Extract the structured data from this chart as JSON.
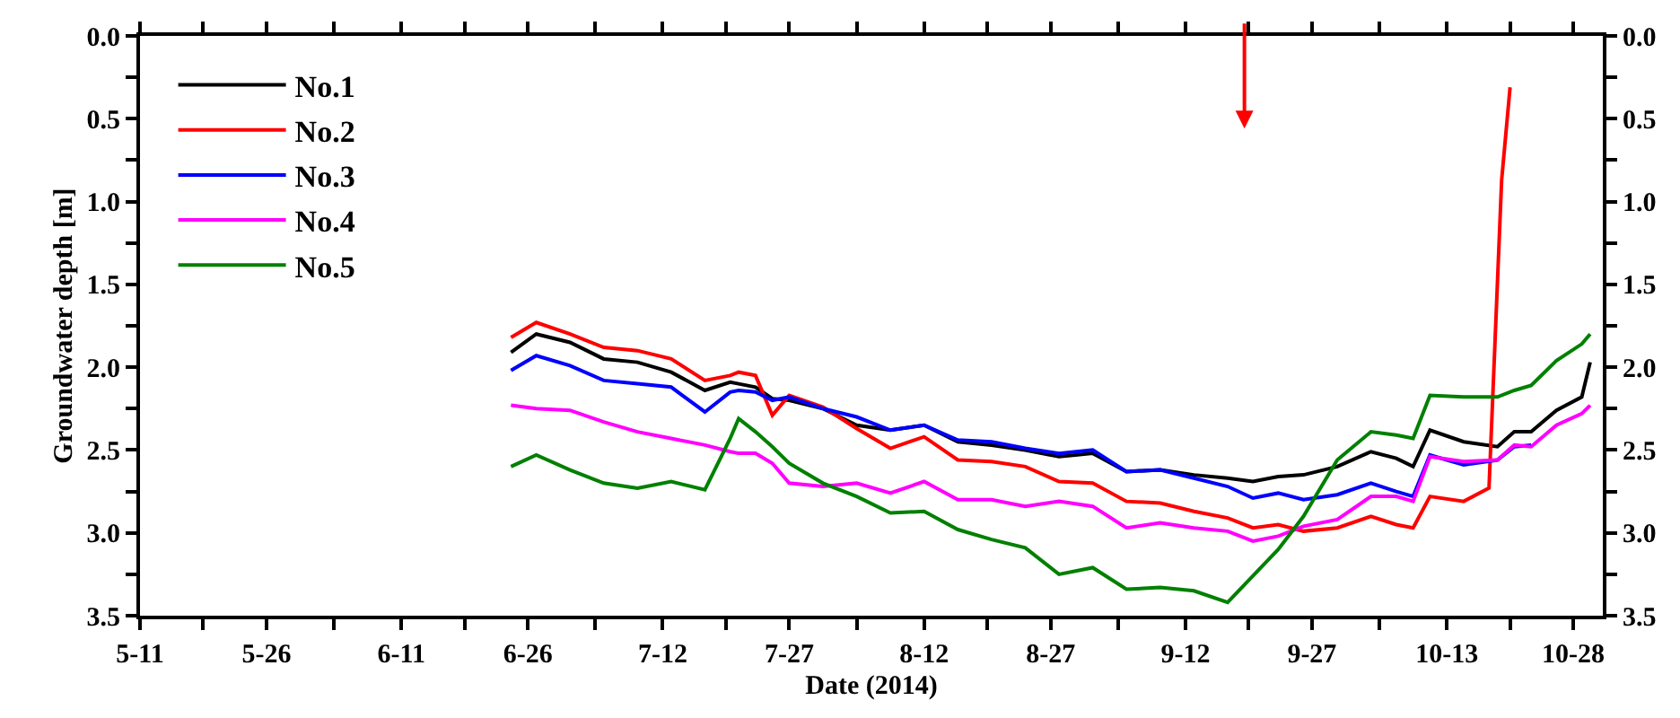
{
  "chart_data": {
    "type": "line",
    "xlabel": "Date (2014)",
    "ylabel": "Groundwater depth [m]",
    "xlim": [
      "2014-05-11",
      "2014-10-31T12:00"
    ],
    "xticks": [
      {
        "value": "2014-05-11",
        "label": "5-11"
      },
      {
        "value": "2014-05-18T12:00",
        "label": null
      },
      {
        "value": "2014-05-26",
        "label": "5-26"
      },
      {
        "value": "2014-06-03",
        "label": null
      },
      {
        "value": "2014-06-11",
        "label": "6-11"
      },
      {
        "value": "2014-06-18T12:00",
        "label": null
      },
      {
        "value": "2014-06-26",
        "label": "6-26"
      },
      {
        "value": "2014-07-04",
        "label": null
      },
      {
        "value": "2014-07-12",
        "label": "7-12"
      },
      {
        "value": "2014-07-19T12:00",
        "label": null
      },
      {
        "value": "2014-07-27",
        "label": "7-27"
      },
      {
        "value": "2014-08-04",
        "label": null
      },
      {
        "value": "2014-08-12",
        "label": "8-12"
      },
      {
        "value": "2014-08-19T12:00",
        "label": null
      },
      {
        "value": "2014-08-27",
        "label": "8-27"
      },
      {
        "value": "2014-09-04",
        "label": null
      },
      {
        "value": "2014-09-12",
        "label": "9-12"
      },
      {
        "value": "2014-09-19T12:00",
        "label": null
      },
      {
        "value": "2014-09-27",
        "label": "9-27"
      },
      {
        "value": "2014-10-05",
        "label": null
      },
      {
        "value": "2014-10-13",
        "label": "10-13"
      },
      {
        "value": "2014-10-20T12:00",
        "label": null
      },
      {
        "value": "2014-10-28",
        "label": "10-28"
      }
    ],
    "ylim": [
      3.5,
      0
    ],
    "yticks": [
      {
        "value": 0,
        "label": "0.0"
      },
      {
        "value": 0.25,
        "label": null
      },
      0.5,
      {
        "value": 0.75,
        "label": null
      },
      {
        "value": 1,
        "label": "1.0"
      },
      {
        "value": 1.25,
        "label": null
      },
      1.5,
      {
        "value": 1.75,
        "label": null
      },
      {
        "value": 2,
        "label": "2.0"
      },
      {
        "value": 2.25,
        "label": null
      },
      2.5,
      {
        "value": 2.75,
        "label": null
      },
      {
        "value": 3,
        "label": "3.0"
      },
      {
        "value": 3.25,
        "label": null
      },
      3.5
    ],
    "y2lim": [
      3.5,
      0
    ],
    "y2ticks": [
      {
        "value": 0,
        "label": "0.0"
      },
      {
        "value": 0.25,
        "label": null
      },
      0.5,
      {
        "value": 0.75,
        "label": null
      },
      {
        "value": 1,
        "label": "1.0"
      },
      {
        "value": 1.25,
        "label": null
      },
      1.5,
      {
        "value": 1.75,
        "label": null
      },
      {
        "value": 2,
        "label": "2.0"
      },
      {
        "value": 2.25,
        "label": null
      },
      2.5,
      {
        "value": 2.75,
        "label": null
      },
      {
        "value": 3,
        "label": "3.0"
      },
      {
        "value": 3.25,
        "label": null
      },
      3.5
    ],
    "legend": "top left",
    "marker": "none",
    "line_style": "solid",
    "series": [
      {
        "name": "No.1",
        "color": "#000000",
        "x": [
          "2014-06-24",
          "2014-06-27",
          "2014-07-01",
          "2014-07-05",
          "2014-07-09",
          "2014-07-13",
          "2014-07-17",
          "2014-07-20",
          "2014-07-21",
          "2014-07-23",
          "2014-07-25",
          "2014-07-27",
          "2014-07-31",
          "2014-08-04",
          "2014-08-08",
          "2014-08-12",
          "2014-08-16",
          "2014-08-20",
          "2014-08-24",
          "2014-08-28",
          "2014-09-01",
          "2014-09-05",
          "2014-09-09",
          "2014-09-13",
          "2014-09-17",
          "2014-09-20",
          "2014-09-23",
          "2014-09-26",
          "2014-09-30",
          "2014-10-04",
          "2014-10-07",
          "2014-10-09",
          "2014-10-11",
          "2014-10-15",
          "2014-10-19",
          "2014-10-21",
          "2014-10-23",
          "2014-10-26",
          "2014-10-29",
          "2014-10-30"
        ],
        "values": [
          1.91,
          1.8,
          1.85,
          1.95,
          1.97,
          2.03,
          2.14,
          2.09,
          2.1,
          2.12,
          2.19,
          2.2,
          2.25,
          2.35,
          2.38,
          2.35,
          2.45,
          2.47,
          2.5,
          2.54,
          2.52,
          2.63,
          2.62,
          2.65,
          2.67,
          2.69,
          2.66,
          2.65,
          2.6,
          2.51,
          2.55,
          2.6,
          2.38,
          2.45,
          2.48,
          2.39,
          2.39,
          2.26,
          2.18,
          1.97
        ]
      },
      {
        "name": "No.2",
        "color": "#ff0000",
        "x": [
          "2014-06-24",
          "2014-06-27",
          "2014-07-01",
          "2014-07-05",
          "2014-07-09",
          "2014-07-13",
          "2014-07-17",
          "2014-07-20",
          "2014-07-21",
          "2014-07-23",
          "2014-07-25",
          "2014-07-27",
          "2014-07-31",
          "2014-08-04",
          "2014-08-08",
          "2014-08-12",
          "2014-08-16",
          "2014-08-20",
          "2014-08-24",
          "2014-08-28",
          "2014-09-01",
          "2014-09-05",
          "2014-09-09",
          "2014-09-13",
          "2014-09-17",
          "2014-09-20",
          "2014-09-23",
          "2014-09-26",
          "2014-09-30",
          "2014-10-04",
          "2014-10-07",
          "2014-10-09",
          "2014-10-11",
          "2014-10-15",
          "2014-10-18",
          "2014-10-19T12:00",
          "2014-10-20T12:00"
        ],
        "values": [
          1.82,
          1.73,
          1.8,
          1.88,
          1.9,
          1.95,
          2.08,
          2.05,
          2.03,
          2.05,
          2.29,
          2.17,
          2.24,
          2.37,
          2.49,
          2.42,
          2.56,
          2.57,
          2.6,
          2.69,
          2.7,
          2.81,
          2.82,
          2.87,
          2.91,
          2.97,
          2.95,
          2.99,
          2.97,
          2.9,
          2.95,
          2.97,
          2.78,
          2.81,
          2.73,
          0.87,
          0.31
        ]
      },
      {
        "name": "No.3",
        "color": "#0000ff",
        "x": [
          "2014-06-24",
          "2014-06-27",
          "2014-07-01",
          "2014-07-05",
          "2014-07-09",
          "2014-07-13",
          "2014-07-17",
          "2014-07-20",
          "2014-07-21",
          "2014-07-23",
          "2014-07-25",
          "2014-07-27",
          "2014-07-31",
          "2014-08-04",
          "2014-08-08",
          "2014-08-12",
          "2014-08-16",
          "2014-08-20",
          "2014-08-24",
          "2014-08-28",
          "2014-09-01",
          "2014-09-05",
          "2014-09-09",
          "2014-09-13",
          "2014-09-17",
          "2014-09-20",
          "2014-09-23",
          "2014-09-26",
          "2014-09-30",
          "2014-10-04",
          "2014-10-07",
          "2014-10-09",
          "2014-10-11",
          "2014-10-15",
          "2014-10-19",
          "2014-10-21",
          "2014-10-23"
        ],
        "values": [
          2.02,
          1.93,
          1.99,
          2.08,
          2.1,
          2.12,
          2.27,
          2.15,
          2.14,
          2.15,
          2.2,
          2.18,
          2.25,
          2.3,
          2.38,
          2.35,
          2.44,
          2.45,
          2.49,
          2.52,
          2.5,
          2.63,
          2.62,
          2.67,
          2.72,
          2.79,
          2.76,
          2.8,
          2.77,
          2.7,
          2.75,
          2.78,
          2.53,
          2.59,
          2.56,
          2.48,
          2.47
        ]
      },
      {
        "name": "No.4",
        "color": "#ff00ff",
        "x": [
          "2014-06-24",
          "2014-06-27",
          "2014-07-01",
          "2014-07-05",
          "2014-07-09",
          "2014-07-13",
          "2014-07-17",
          "2014-07-20",
          "2014-07-21",
          "2014-07-23",
          "2014-07-25",
          "2014-07-27",
          "2014-07-31",
          "2014-08-04",
          "2014-08-08",
          "2014-08-12",
          "2014-08-16",
          "2014-08-20",
          "2014-08-24",
          "2014-08-28",
          "2014-09-01",
          "2014-09-05",
          "2014-09-09",
          "2014-09-13",
          "2014-09-17",
          "2014-09-20",
          "2014-09-23",
          "2014-09-26",
          "2014-09-30",
          "2014-10-04",
          "2014-10-07",
          "2014-10-09",
          "2014-10-11",
          "2014-10-15",
          "2014-10-19",
          "2014-10-21",
          "2014-10-23",
          "2014-10-26",
          "2014-10-29",
          "2014-10-30"
        ],
        "values": [
          2.23,
          2.25,
          2.26,
          2.33,
          2.39,
          2.43,
          2.47,
          2.51,
          2.52,
          2.52,
          2.58,
          2.7,
          2.72,
          2.7,
          2.76,
          2.69,
          2.8,
          2.8,
          2.84,
          2.81,
          2.84,
          2.97,
          2.94,
          2.97,
          2.99,
          3.05,
          3.02,
          2.96,
          2.92,
          2.78,
          2.78,
          2.81,
          2.54,
          2.57,
          2.56,
          2.47,
          2.48,
          2.35,
          2.28,
          2.23
        ]
      },
      {
        "name": "No.5",
        "color": "#008000",
        "x": [
          "2014-06-24",
          "2014-06-27",
          "2014-07-01",
          "2014-07-05",
          "2014-07-09",
          "2014-07-13",
          "2014-07-17",
          "2014-07-20",
          "2014-07-21",
          "2014-07-23",
          "2014-07-25",
          "2014-07-27",
          "2014-07-31",
          "2014-08-04",
          "2014-08-08",
          "2014-08-12",
          "2014-08-16",
          "2014-08-20",
          "2014-08-24",
          "2014-08-28",
          "2014-09-01",
          "2014-09-05",
          "2014-09-09",
          "2014-09-13",
          "2014-09-17",
          "2014-09-20",
          "2014-09-23",
          "2014-09-26",
          "2014-09-30",
          "2014-10-04",
          "2014-10-07",
          "2014-10-09",
          "2014-10-11",
          "2014-10-15",
          "2014-10-19",
          "2014-10-21",
          "2014-10-23",
          "2014-10-26",
          "2014-10-29",
          "2014-10-30"
        ],
        "values": [
          2.6,
          2.53,
          2.62,
          2.7,
          2.73,
          2.69,
          2.74,
          2.43,
          2.31,
          2.39,
          2.48,
          2.58,
          2.7,
          2.78,
          2.88,
          2.87,
          2.98,
          3.04,
          3.09,
          3.25,
          3.21,
          3.34,
          3.33,
          3.35,
          3.42,
          3.26,
          3.1,
          2.9,
          2.56,
          2.39,
          2.41,
          2.43,
          2.17,
          2.18,
          2.18,
          2.14,
          2.11,
          1.96,
          1.86,
          1.8
        ]
      }
    ]
  }
}
